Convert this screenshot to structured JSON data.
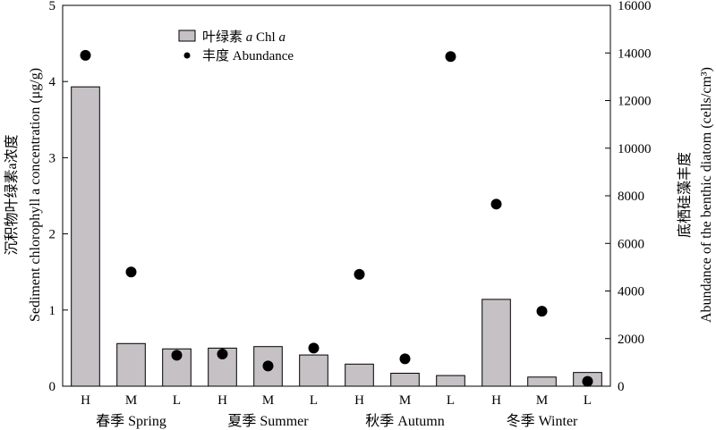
{
  "chart_data": {
    "type": "bar",
    "categories": [
      "H",
      "M",
      "L",
      "H",
      "M",
      "L",
      "H",
      "M",
      "L",
      "H",
      "M",
      "L"
    ],
    "groups": [
      "春季 Spring",
      "夏季 Summer",
      "秋季 Autumn",
      "冬季 Winter"
    ],
    "series": [
      {
        "name": "叶绿素 a Chl a",
        "axis": "left",
        "kind": "bar",
        "values": [
          3.93,
          0.56,
          0.49,
          0.5,
          0.52,
          0.41,
          0.29,
          0.17,
          0.14,
          1.14,
          0.12,
          0.18
        ]
      },
      {
        "name": "丰度 Abundance",
        "axis": "right",
        "kind": "scatter",
        "values": [
          13900,
          4800,
          1300,
          1350,
          850,
          1600,
          4700,
          1150,
          13850,
          7650,
          3150,
          200
        ]
      }
    ],
    "ylabel_left": [
      "沉积物叶绿素a浓度",
      "Sediment chlorophyll a concentration (μg/g)"
    ],
    "ylabel_right": [
      "底栖硅藻丰度",
      "Abundance of the benthic diatom (cells/cm³)"
    ],
    "ylim_left": [
      0,
      5
    ],
    "ylim_right": [
      0,
      16000
    ],
    "yticks_left": [
      "0",
      "1",
      "2",
      "3",
      "4",
      "5"
    ],
    "yticks_right": [
      "0",
      "2000",
      "4000",
      "6000",
      "8000",
      "10000",
      "12000",
      "14000",
      "16000"
    ],
    "legend": {
      "placement": "top-left",
      "bar_label": [
        "叶绿素 ",
        "a",
        " Chl ",
        "a"
      ],
      "dot_label": "丰度 Abundance"
    },
    "grid": false,
    "colors": {
      "bar_fill": "#c5c1c5",
      "bar_stroke": "#000000",
      "dot": "#000000"
    }
  }
}
